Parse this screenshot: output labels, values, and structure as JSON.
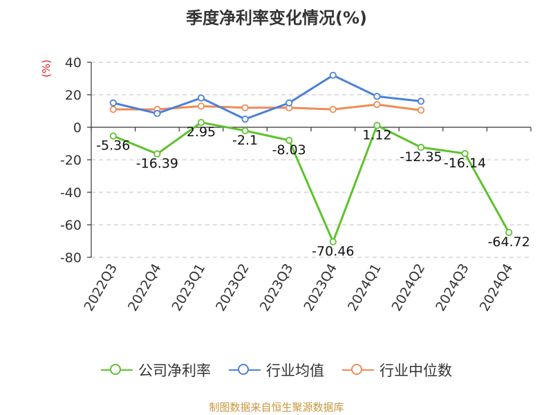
{
  "title": "季度净利率变化情况(%)",
  "unit": "(%)",
  "footer": "制图数据来自恒生聚源数据库",
  "colors": {
    "company": "#5cc22a",
    "industry_avg": "#4a7fdb",
    "industry_median": "#f08a55"
  },
  "legend": [
    {
      "name": "公司净利率",
      "color": "#5cc22a"
    },
    {
      "name": "行业均值",
      "color": "#4a7fdb"
    },
    {
      "name": "行业中位数",
      "color": "#f08a55"
    }
  ],
  "chart_data": {
    "type": "line",
    "title": "季度净利率变化情况(%)",
    "ylabel": "(%)",
    "ylim": [
      -80,
      40
    ],
    "yticks": [
      40,
      20,
      0,
      -20,
      -40,
      -60,
      -80
    ],
    "grid": true,
    "legend_position": "bottom",
    "categories": [
      "2022Q3",
      "2022Q4",
      "2023Q1",
      "2023Q2",
      "2023Q3",
      "2023Q4",
      "2024Q1",
      "2024Q2",
      "2024Q3",
      "2024Q4"
    ],
    "series": [
      {
        "name": "公司净利率",
        "values": [
          -5.36,
          -16.39,
          2.95,
          -2.1,
          -8.03,
          -70.46,
          1.12,
          -12.35,
          -16.14,
          -64.72
        ],
        "labels": [
          "-5.36",
          "-16.39",
          "2.95",
          "-2.1",
          "-8.03",
          "-70.46",
          "1.12",
          "-12.35",
          "-16.14",
          "-64.72"
        ]
      },
      {
        "name": "行业均值",
        "values": [
          15,
          8.5,
          18,
          5,
          15,
          32,
          19,
          16,
          null,
          null
        ]
      },
      {
        "name": "行业中位数",
        "values": [
          11,
          11,
          13,
          12,
          12,
          11,
          14,
          10.5,
          null,
          null
        ]
      }
    ]
  }
}
